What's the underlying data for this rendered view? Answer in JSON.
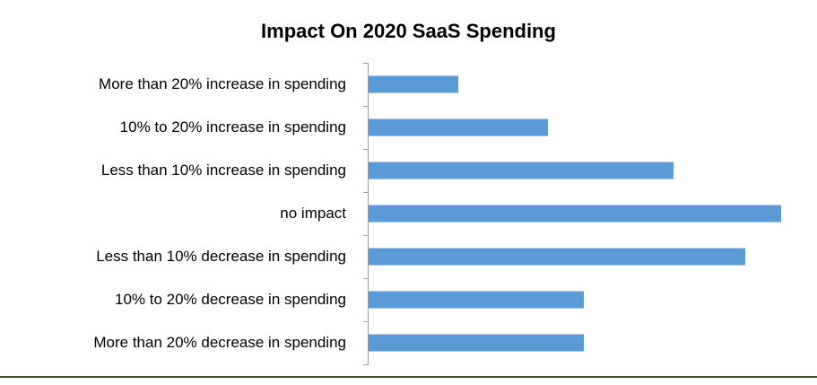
{
  "chart_data": {
    "type": "bar",
    "orientation": "horizontal",
    "title": "Impact On 2020 SaaS Spending",
    "categories": [
      "More than 20% increase in spending",
      "10% to 20% increase in spending",
      "Less than 10% increase in spending",
      "no impact",
      "Less than 10% decrease in spending",
      "10% to 20% decrease in spending",
      "More than 20% decrease in spending"
    ],
    "values": [
      5,
      10,
      17,
      23,
      21,
      12,
      12
    ],
    "xlabel": "",
    "ylabel": "",
    "xlim": [
      0,
      25
    ],
    "grid": false,
    "legend": "none",
    "bar_color": "#5B9BD5"
  },
  "colors": {
    "bar": "#5B9BD5",
    "axis": "#9c9c9c",
    "title_text": "#000000",
    "label_text": "#000000",
    "bottom_rule": "#375623"
  }
}
